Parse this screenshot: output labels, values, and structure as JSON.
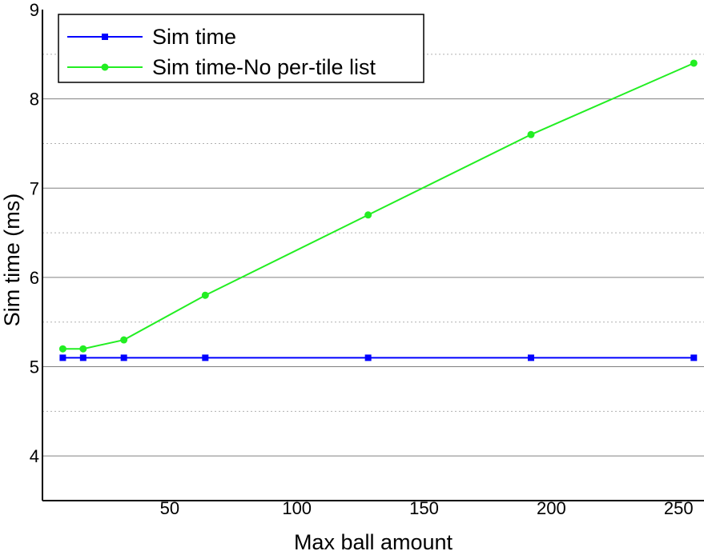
{
  "chart_data": {
    "type": "line",
    "xlabel": "Max ball amount",
    "ylabel": "Sim time (ms)",
    "xlim": [
      0,
      260
    ],
    "ylim": [
      3.5,
      9
    ],
    "x_ticks": [
      50,
      100,
      150,
      200,
      250
    ],
    "y_ticks": [
      4,
      5,
      6,
      7,
      8,
      9
    ],
    "grid": "horizontal",
    "legend_position": "top-left",
    "series": [
      {
        "name": "Sim time",
        "color": "#0000ff",
        "marker": "square",
        "x": [
          8,
          16,
          32,
          64,
          128,
          192,
          256
        ],
        "y": [
          5.1,
          5.1,
          5.1,
          5.1,
          5.1,
          5.1,
          5.1
        ]
      },
      {
        "name": "Sim time-No per-tile list",
        "color": "#22ee22",
        "marker": "circle",
        "x": [
          8,
          16,
          32,
          64,
          128,
          192,
          256
        ],
        "y": [
          5.2,
          5.2,
          5.3,
          5.8,
          6.7,
          7.6,
          8.4
        ]
      }
    ]
  }
}
